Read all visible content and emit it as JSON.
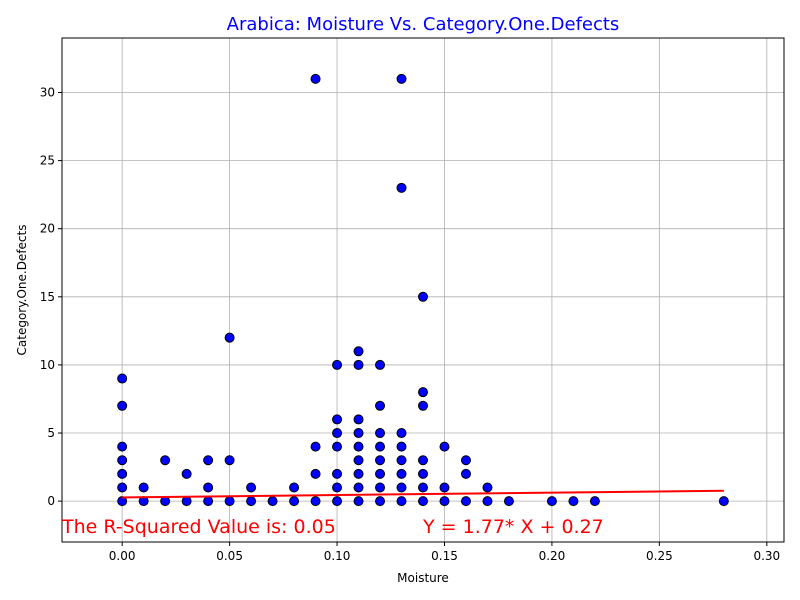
{
  "chart_data": {
    "type": "scatter",
    "title": "Arabica: Moisture Vs. Category.One.Defects",
    "xlabel": "Moisture",
    "ylabel": "Category.One.Defects",
    "xlim": [
      -0.028,
      0.308
    ],
    "ylim": [
      -3.0,
      34.0
    ],
    "xticks": [
      0.0,
      0.05,
      0.1,
      0.15,
      0.2,
      0.25,
      0.3
    ],
    "xtick_labels": [
      "0.00",
      "0.05",
      "0.10",
      "0.15",
      "0.20",
      "0.25",
      "0.30"
    ],
    "yticks": [
      0,
      5,
      10,
      15,
      20,
      25,
      30
    ],
    "ytick_labels": [
      "0",
      "5",
      "10",
      "15",
      "20",
      "25",
      "30"
    ],
    "grid": true,
    "colors": {
      "title": "#0000ff",
      "marker_fill": "#0000ff",
      "marker_edge": "#000000",
      "regression": "#ff0000",
      "annotation": "#ff0000",
      "grid": "#b0b0b0"
    },
    "points": [
      [
        0.0,
        0
      ],
      [
        0.0,
        1
      ],
      [
        0.0,
        2
      ],
      [
        0.0,
        3
      ],
      [
        0.0,
        4
      ],
      [
        0.0,
        7
      ],
      [
        0.0,
        9
      ],
      [
        0.01,
        0
      ],
      [
        0.01,
        1
      ],
      [
        0.02,
        0
      ],
      [
        0.02,
        3
      ],
      [
        0.03,
        0
      ],
      [
        0.03,
        2
      ],
      [
        0.04,
        0
      ],
      [
        0.04,
        1
      ],
      [
        0.04,
        3
      ],
      [
        0.05,
        0
      ],
      [
        0.05,
        3
      ],
      [
        0.05,
        12
      ],
      [
        0.06,
        0
      ],
      [
        0.06,
        1
      ],
      [
        0.07,
        0
      ],
      [
        0.08,
        0
      ],
      [
        0.08,
        1
      ],
      [
        0.09,
        0
      ],
      [
        0.09,
        2
      ],
      [
        0.09,
        4
      ],
      [
        0.09,
        31
      ],
      [
        0.1,
        0
      ],
      [
        0.1,
        1
      ],
      [
        0.1,
        2
      ],
      [
        0.1,
        4
      ],
      [
        0.1,
        5
      ],
      [
        0.1,
        6
      ],
      [
        0.1,
        10
      ],
      [
        0.11,
        0
      ],
      [
        0.11,
        1
      ],
      [
        0.11,
        2
      ],
      [
        0.11,
        3
      ],
      [
        0.11,
        4
      ],
      [
        0.11,
        5
      ],
      [
        0.11,
        6
      ],
      [
        0.11,
        10
      ],
      [
        0.11,
        11
      ],
      [
        0.12,
        0
      ],
      [
        0.12,
        1
      ],
      [
        0.12,
        2
      ],
      [
        0.12,
        3
      ],
      [
        0.12,
        4
      ],
      [
        0.12,
        5
      ],
      [
        0.12,
        7
      ],
      [
        0.12,
        10
      ],
      [
        0.13,
        0
      ],
      [
        0.13,
        1
      ],
      [
        0.13,
        2
      ],
      [
        0.13,
        3
      ],
      [
        0.13,
        4
      ],
      [
        0.13,
        5
      ],
      [
        0.13,
        23
      ],
      [
        0.13,
        31
      ],
      [
        0.14,
        0
      ],
      [
        0.14,
        1
      ],
      [
        0.14,
        2
      ],
      [
        0.14,
        3
      ],
      [
        0.14,
        7
      ],
      [
        0.14,
        8
      ],
      [
        0.14,
        15
      ],
      [
        0.15,
        0
      ],
      [
        0.15,
        1
      ],
      [
        0.15,
        4
      ],
      [
        0.16,
        0
      ],
      [
        0.16,
        2
      ],
      [
        0.16,
        3
      ],
      [
        0.17,
        0
      ],
      [
        0.17,
        1
      ],
      [
        0.18,
        0
      ],
      [
        0.2,
        0
      ],
      [
        0.21,
        0
      ],
      [
        0.22,
        0
      ],
      [
        0.28,
        0
      ]
    ],
    "regression": {
      "slope": 1.77,
      "intercept": 0.27,
      "x_range": [
        0.0,
        0.28
      ]
    },
    "annotations": {
      "r_squared": "The R-Squared Value is: 0.05",
      "equation": "Y = 1.77* X + 0.27"
    }
  }
}
